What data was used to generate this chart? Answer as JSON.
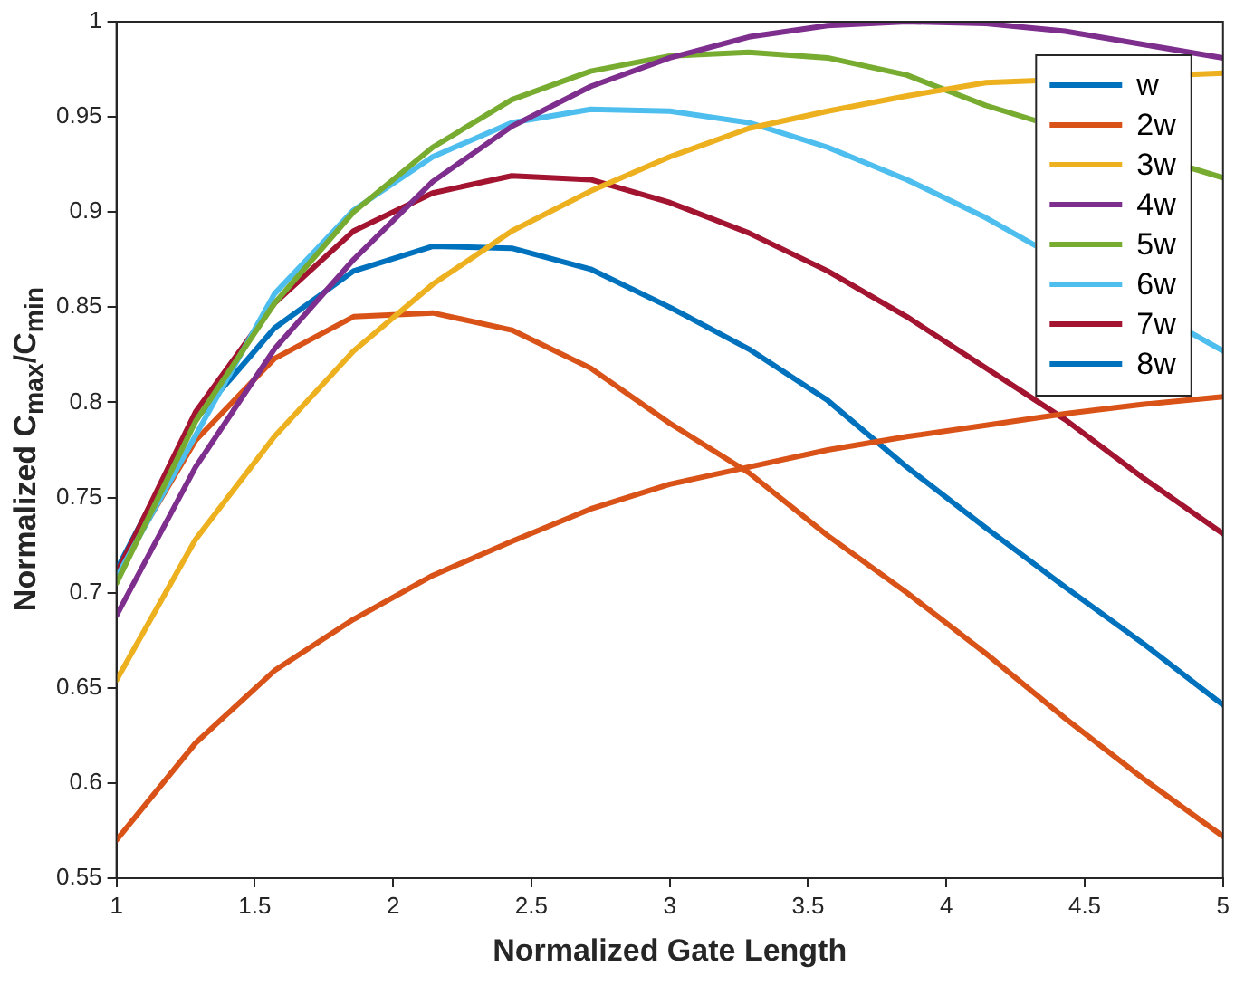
{
  "chart_data": {
    "type": "line",
    "xlabel": "Normalized Gate Length",
    "ylabel": "Normalized C$_{max}$/C$_{min}$",
    "x": [
      1,
      1.286,
      1.571,
      1.857,
      2.143,
      2.429,
      2.714,
      3,
      3.286,
      3.571,
      3.857,
      4.143,
      4.429,
      4.714,
      5
    ],
    "xlim": [
      1,
      5
    ],
    "xticks": [
      1,
      1.5,
      2,
      2.5,
      3,
      3.5,
      4,
      4.5,
      5
    ],
    "ylim": [
      0.55,
      1
    ],
    "yticks": [
      0.55,
      0.6,
      0.65,
      0.7,
      0.75,
      0.8,
      0.85,
      0.9,
      0.95,
      1
    ],
    "grid": false,
    "legend": "top right",
    "marker": "none",
    "line_style": "solid",
    "series": [
      {
        "name": "w",
        "color": "#0072bd",
        "values": [
          null,
          null,
          null,
          null,
          null,
          null,
          null,
          null,
          null,
          null,
          null,
          null,
          null,
          null,
          null
        ]
      },
      {
        "name": "2w",
        "color": "#d95319",
        "values": [
          0.57,
          0.621,
          0.659,
          0.686,
          0.709,
          0.727,
          0.744,
          0.757,
          0.766,
          0.775,
          0.782,
          0.788,
          0.794,
          0.799,
          0.803
        ]
      },
      {
        "name": "3w",
        "color": "#edb120",
        "values": [
          0.654,
          0.728,
          0.782,
          0.827,
          0.862,
          0.89,
          0.911,
          0.929,
          0.944,
          0.953,
          0.961,
          0.968,
          null,
          null,
          0.973
        ]
      },
      {
        "name": "4w",
        "color": "#7e2f8e",
        "values": [
          0.688,
          0.766,
          0.828,
          0.875,
          0.916,
          0.945,
          0.966,
          0.981,
          0.992,
          0.998,
          1.0,
          0.999,
          0.995,
          0.988,
          0.981
        ]
      },
      {
        "name": "5w",
        "color": "#77ac30",
        "values": [
          0.705,
          0.79,
          0.852,
          0.9,
          0.934,
          0.959,
          0.974,
          0.982,
          0.984,
          0.981,
          0.972,
          0.956,
          null,
          null,
          0.918
        ]
      },
      {
        "name": "6w",
        "color": "#4dbeee",
        "values": [
          0.708,
          null,
          0.857,
          0.901,
          0.929,
          0.947,
          0.954,
          0.953,
          0.947,
          0.934,
          0.917,
          0.897,
          null,
          null,
          0.827
        ]
      },
      {
        "name": "7w",
        "color": "#a2142f",
        "values": [
          0.71,
          0.795,
          0.852,
          0.89,
          0.91,
          0.919,
          0.917,
          0.905,
          0.889,
          0.869,
          0.845,
          0.818,
          0.791,
          0.76,
          0.731
        ]
      },
      {
        "name": "8w",
        "color": "#0072bd",
        "values": [
          0.712,
          0.791,
          0.839,
          0.869,
          0.882,
          0.881,
          0.87,
          0.85,
          0.828,
          0.801,
          0.766,
          0.734,
          0.703,
          0.673,
          0.641
        ]
      },
      {
        "color": "#d95319",
        "values": [
          0.71,
          0.78,
          0.823,
          0.845,
          0.847,
          0.838,
          0.818,
          0.789,
          0.763,
          0.73,
          0.7,
          0.668,
          0.634,
          0.602,
          0.572
        ]
      }
    ]
  }
}
